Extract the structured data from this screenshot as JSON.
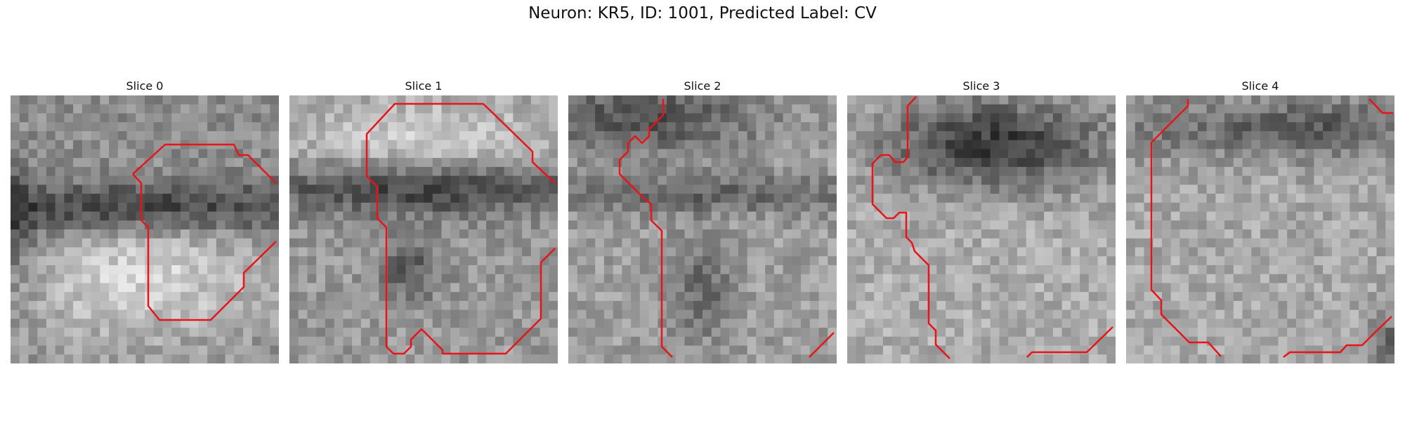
{
  "figure": {
    "title": "Neuron: KR5, ID: 1001, Predicted Label: CV"
  },
  "panels": [
    {
      "title": "Slice 0",
      "contour_color": "#e8141a"
    },
    {
      "title": "Slice 1",
      "contour_color": "#e8141a"
    },
    {
      "title": "Slice 2",
      "contour_color": "#e8141a"
    },
    {
      "title": "Slice 3",
      "contour_color": "#e8141a"
    },
    {
      "title": "Slice 4",
      "contour_color": "#e8141a"
    }
  ]
}
